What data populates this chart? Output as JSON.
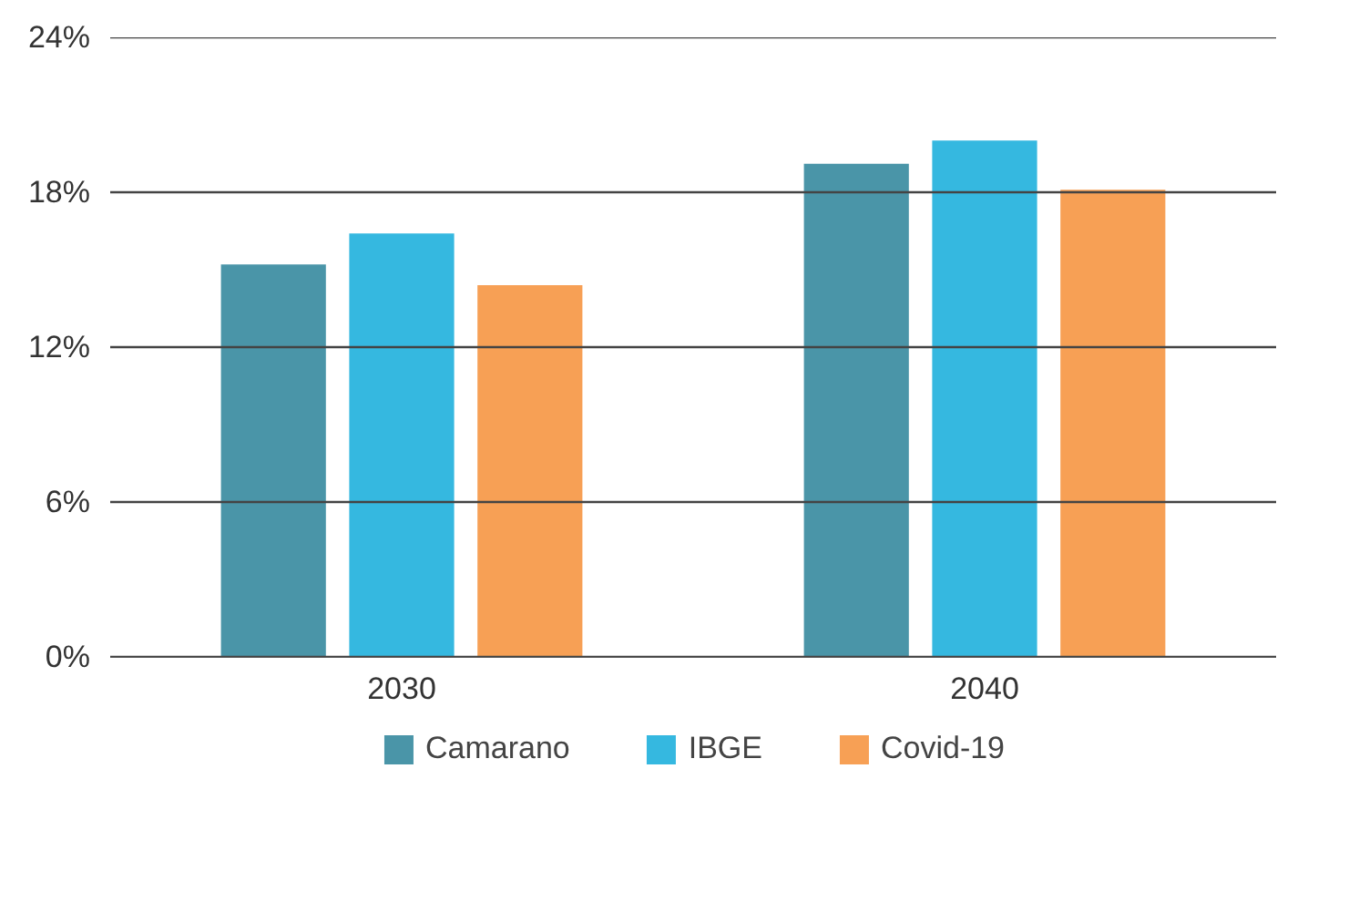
{
  "chart_data": {
    "type": "bar",
    "categories": [
      "2030",
      "2040"
    ],
    "series": [
      {
        "name": "Camarano",
        "color": "#4a95a8",
        "values": [
          15.2,
          19.1
        ]
      },
      {
        "name": "IBGE",
        "color": "#35b8e0",
        "values": [
          16.4,
          20.0
        ]
      },
      {
        "name": "Covid-19",
        "color": "#f7a055",
        "values": [
          14.4,
          18.1
        ]
      }
    ],
    "ylim": [
      0,
      24
    ],
    "yticks": [
      {
        "value": 0,
        "label": "0%"
      },
      {
        "value": 6,
        "label": "6%"
      },
      {
        "value": 12,
        "label": "12%"
      },
      {
        "value": 18,
        "label": "18%"
      },
      {
        "value": 24,
        "label": "24%"
      }
    ],
    "grid": "y",
    "legend": "bottom"
  }
}
